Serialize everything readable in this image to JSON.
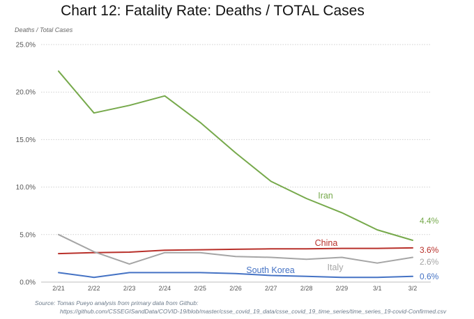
{
  "title": "Chart 12: Fatality Rate: Deaths / TOTAL Cases",
  "source_line1": "Source: Tomas Pueyo analysis from primary data from Github:",
  "source_line2": "https://github.com/CSSEGISandData/COVID-19/blob/master/csse_covid_19_data/csse_covid_19_time_series/time_series_19-covid-Confirmed.csv",
  "chart_data": {
    "type": "line",
    "title": "Chart 12: Fatality Rate: Deaths / TOTAL Cases",
    "ylabel": "Deaths / Total Cases",
    "xlabel": "",
    "ylim": [
      0,
      25
    ],
    "y_ticks": [
      "0.0%",
      "5.0%",
      "10.0%",
      "15.0%",
      "20.0%",
      "25.0%"
    ],
    "y_tick_values": [
      0,
      5,
      10,
      15,
      20,
      25
    ],
    "categories": [
      "2/21",
      "2/22",
      "2/23",
      "2/24",
      "2/25",
      "2/26",
      "2/27",
      "2/28",
      "2/29",
      "3/1",
      "3/2"
    ],
    "grid": "horizontal dotted",
    "legend": "inline labels",
    "series": [
      {
        "name": "Iran",
        "color": "#76a94b",
        "end_label": "4.4%",
        "values": [
          22.2,
          17.8,
          18.6,
          19.6,
          16.8,
          13.6,
          10.6,
          8.8,
          7.3,
          5.5,
          4.4
        ]
      },
      {
        "name": "China",
        "color": "#b8302a",
        "end_label": "3.6%",
        "values": [
          3.0,
          3.1,
          3.15,
          3.35,
          3.4,
          3.45,
          3.5,
          3.5,
          3.55,
          3.55,
          3.6
        ]
      },
      {
        "name": "Italy",
        "color": "#a5a5a5",
        "end_label": "2.6%",
        "values": [
          5.0,
          3.2,
          1.9,
          3.1,
          3.1,
          2.7,
          2.6,
          2.4,
          2.6,
          2.0,
          2.6
        ]
      },
      {
        "name": "South Korea",
        "color": "#4472c4",
        "end_label": "0.6%",
        "values": [
          1.0,
          0.5,
          1.0,
          1.0,
          1.0,
          0.9,
          0.7,
          0.6,
          0.5,
          0.5,
          0.6
        ]
      }
    ]
  }
}
